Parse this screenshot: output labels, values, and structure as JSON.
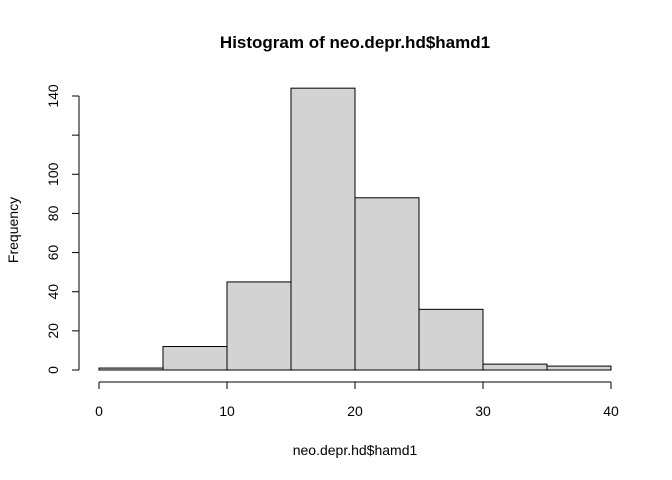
{
  "chart_data": {
    "type": "bar",
    "title": "Histogram of neo.depr.hd$hamd1",
    "xlabel": "neo.depr.hd$hamd1",
    "ylabel": "Frequency",
    "bins": [
      {
        "start": 0,
        "end": 5,
        "count": 1
      },
      {
        "start": 5,
        "end": 10,
        "count": 12
      },
      {
        "start": 10,
        "end": 15,
        "count": 45
      },
      {
        "start": 15,
        "end": 20,
        "count": 144
      },
      {
        "start": 20,
        "end": 25,
        "count": 88
      },
      {
        "start": 25,
        "end": 30,
        "count": 31
      },
      {
        "start": 30,
        "end": 35,
        "count": 3
      },
      {
        "start": 35,
        "end": 40,
        "count": 2
      }
    ],
    "xlim": [
      0,
      40
    ],
    "ylim": [
      0,
      140
    ],
    "xticks": [
      0,
      10,
      20,
      30,
      40
    ],
    "yticks": [
      0,
      20,
      40,
      60,
      80,
      100,
      120,
      140
    ],
    "ytick_labels": [
      "0",
      "20",
      "40",
      "60",
      "80",
      "100",
      "",
      "140"
    ],
    "colors": {
      "bar_fill": "#d3d3d3",
      "bar_stroke": "#000000"
    },
    "grid": false
  }
}
